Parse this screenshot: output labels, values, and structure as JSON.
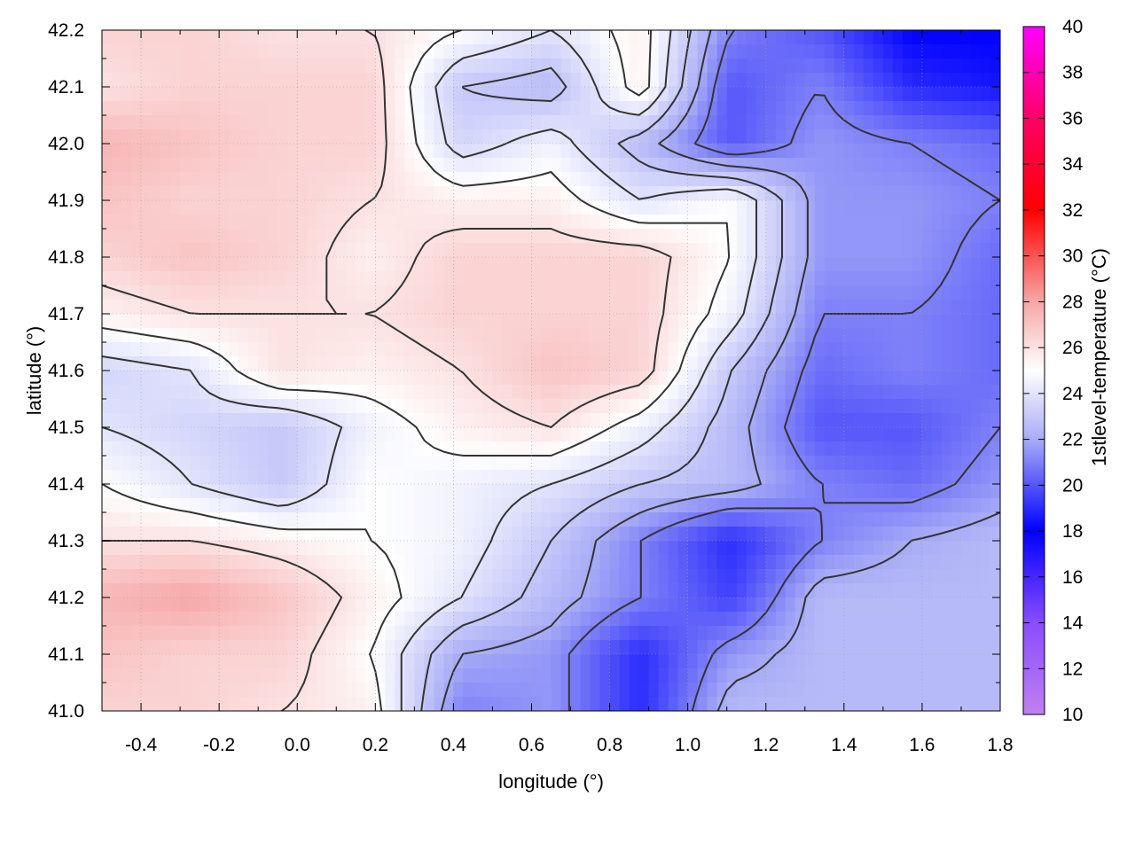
{
  "chart_data": {
    "type": "heatmap",
    "title": "",
    "xlabel": "longitude (°)",
    "ylabel": "latitude (°)",
    "colorbar_label": "1stlevel-temperature (°C)",
    "xlim": [
      -0.5,
      1.8
    ],
    "ylim": [
      41.0,
      42.2
    ],
    "clim": [
      10,
      40
    ],
    "x_ticks": [
      "-0.4",
      "-0.2",
      "0.0",
      "0.2",
      "0.4",
      "0.6",
      "0.8",
      "1.0",
      "1.2",
      "1.4",
      "1.6",
      "1.8"
    ],
    "y_ticks": [
      "41.0",
      "41.1",
      "41.2",
      "41.3",
      "41.4",
      "41.5",
      "41.6",
      "41.7",
      "41.8",
      "41.9",
      "42.0",
      "42.1",
      "42.2"
    ],
    "colorbar_ticks": [
      "10",
      "12",
      "14",
      "16",
      "18",
      "20",
      "22",
      "24",
      "26",
      "28",
      "30",
      "32",
      "34",
      "36",
      "38",
      "40"
    ],
    "colormap": [
      {
        "value": 10,
        "color": "#c080f0"
      },
      {
        "value": 14,
        "color": "#8a4cff"
      },
      {
        "value": 18,
        "color": "#0000ff"
      },
      {
        "value": 22,
        "color": "#a8acf6"
      },
      {
        "value": 25,
        "color": "#ffffff"
      },
      {
        "value": 28,
        "color": "#f6a6a6"
      },
      {
        "value": 32,
        "color": "#ff0000"
      },
      {
        "value": 36,
        "color": "#ff0066"
      },
      {
        "value": 40,
        "color": "#ff00ff"
      }
    ],
    "grid": true,
    "contour_color": "#333333",
    "lon": [
      -0.5,
      -0.27,
      -0.04,
      0.19,
      0.42,
      0.65,
      0.88,
      1.11,
      1.34,
      1.57,
      1.8
    ],
    "lat": [
      42.2,
      42.1,
      42.0,
      41.9,
      41.8,
      41.7,
      41.6,
      41.5,
      41.4,
      41.3,
      41.2,
      41.1,
      41.0
    ],
    "temperature": [
      [
        26.5,
        26.5,
        26.0,
        26.0,
        25.0,
        24.0,
        25.5,
        21.0,
        20.0,
        18.0,
        18.0
      ],
      [
        26.0,
        26.5,
        26.5,
        26.5,
        23.0,
        22.5,
        25.5,
        20.0,
        21.0,
        19.0,
        18.5
      ],
      [
        27.5,
        27.0,
        26.5,
        26.5,
        23.5,
        24.5,
        22.5,
        20.0,
        21.5,
        21.0,
        20.5
      ],
      [
        27.0,
        26.5,
        26.5,
        26.0,
        25.5,
        25.5,
        24.0,
        25.0,
        21.5,
        21.5,
        21.0
      ],
      [
        26.5,
        27.0,
        26.5,
        25.5,
        26.5,
        26.5,
        26.5,
        25.0,
        21.5,
        21.5,
        20.5
      ],
      [
        25.5,
        26.0,
        26.0,
        26.0,
        26.5,
        26.5,
        26.5,
        24.5,
        21.0,
        21.0,
        20.5
      ],
      [
        23.5,
        24.0,
        26.0,
        25.5,
        26.0,
        27.0,
        26.5,
        23.0,
        20.5,
        21.0,
        20.5
      ],
      [
        24.0,
        23.5,
        23.0,
        24.5,
        25.5,
        26.0,
        24.5,
        22.5,
        20.0,
        20.0,
        21.0
      ],
      [
        25.0,
        24.0,
        23.0,
        25.0,
        24.5,
        24.0,
        23.0,
        22.5,
        21.0,
        20.5,
        21.5
      ],
      [
        26.0,
        26.0,
        25.5,
        25.0,
        24.5,
        23.0,
        21.0,
        19.0,
        21.0,
        22.0,
        22.5
      ],
      [
        27.5,
        28.0,
        27.0,
        25.5,
        24.0,
        22.5,
        21.0,
        19.5,
        22.5,
        22.5,
        22.5
      ],
      [
        27.0,
        26.5,
        26.5,
        25.0,
        22.0,
        21.5,
        19.0,
        21.5,
        22.5,
        22.5,
        22.5
      ],
      [
        26.5,
        26.5,
        26.0,
        25.5,
        21.0,
        21.5,
        19.0,
        22.5,
        22.5,
        22.5,
        22.5
      ]
    ],
    "contour_levels": [
      21,
      22,
      23,
      24,
      25,
      26
    ]
  }
}
